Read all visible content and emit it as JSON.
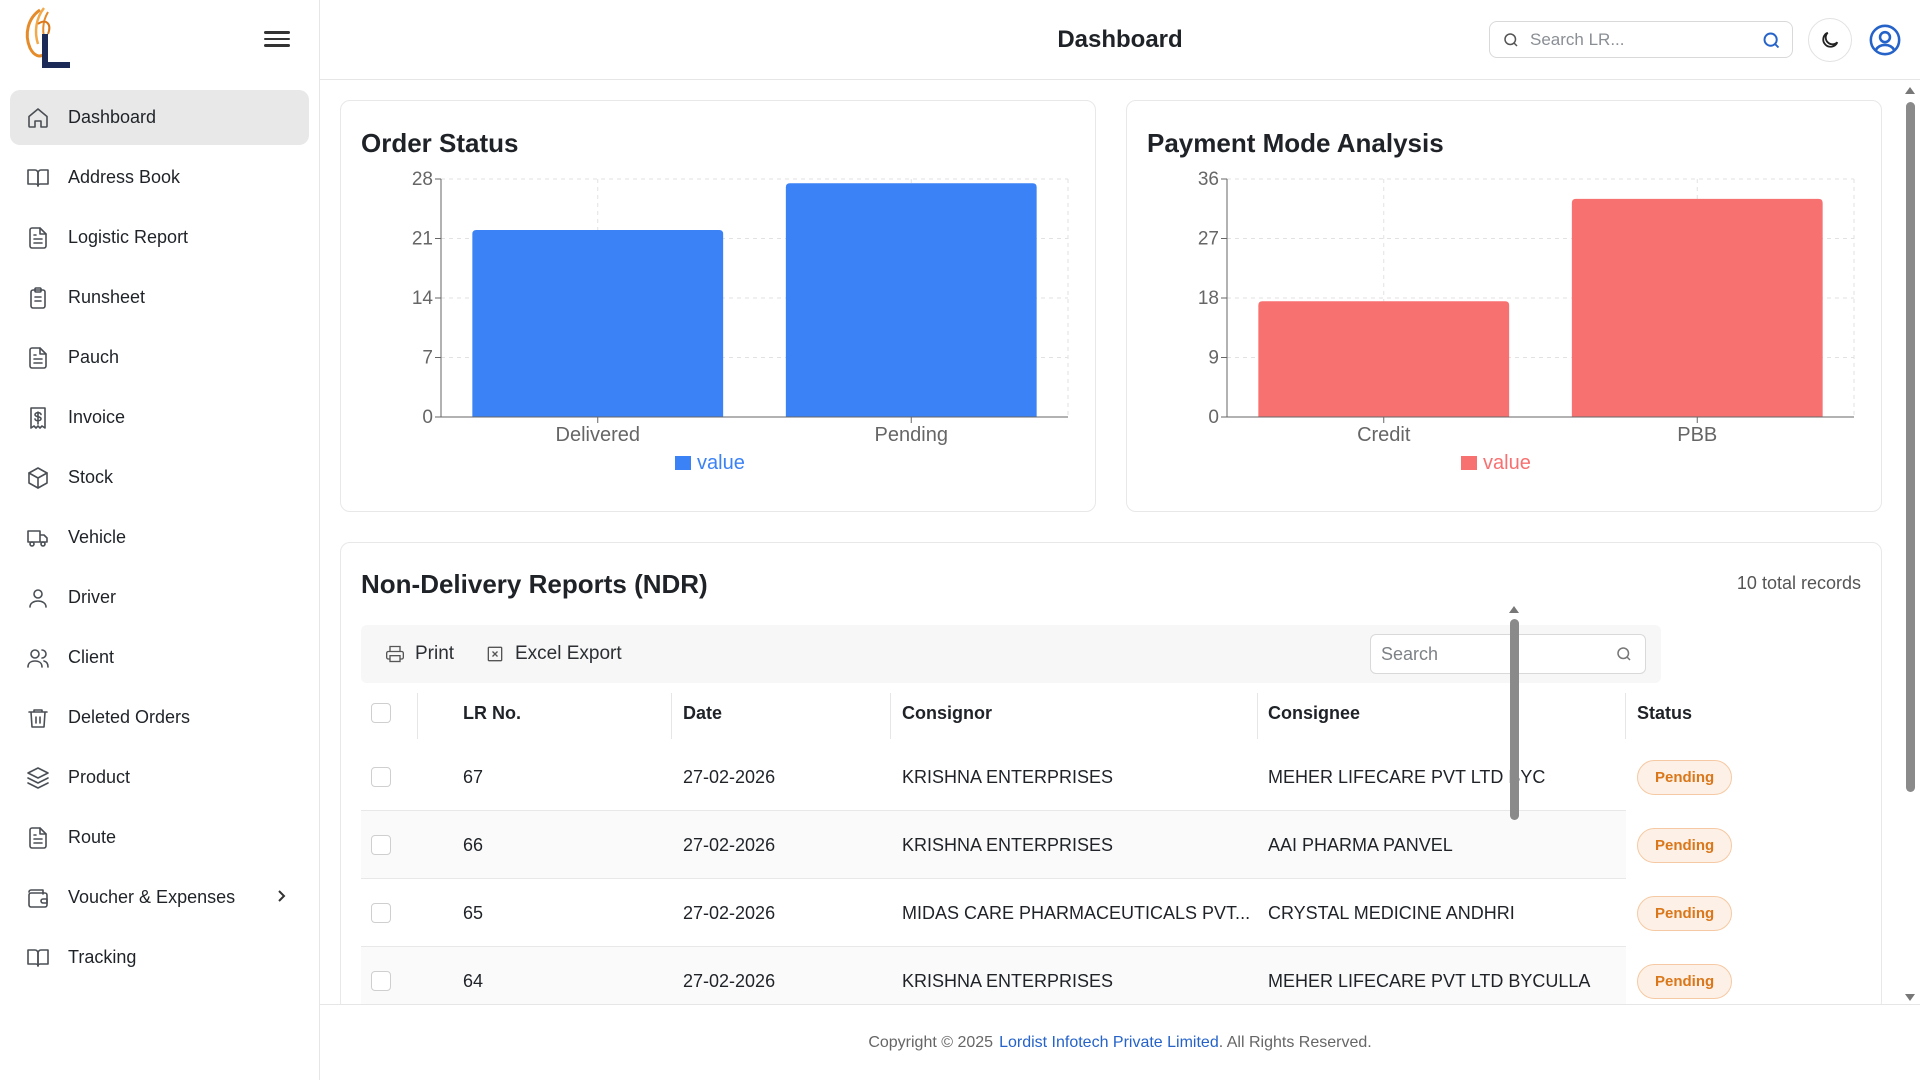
{
  "sidebar": {
    "items": [
      {
        "label": "Dashboard",
        "icon": "home-icon",
        "active": true
      },
      {
        "label": "Address Book",
        "icon": "book-open-icon"
      },
      {
        "label": "Logistic Report",
        "icon": "file-text-icon"
      },
      {
        "label": "Runsheet",
        "icon": "clipboard-list-icon"
      },
      {
        "label": "Pauch",
        "icon": "file-text-icon"
      },
      {
        "label": "Invoice",
        "icon": "receipt-dollar-icon"
      },
      {
        "label": "Stock",
        "icon": "box-icon"
      },
      {
        "label": "Vehicle",
        "icon": "truck-icon"
      },
      {
        "label": "Driver",
        "icon": "user-icon"
      },
      {
        "label": "Client",
        "icon": "users-icon"
      },
      {
        "label": "Deleted Orders",
        "icon": "trash-icon"
      },
      {
        "label": "Product",
        "icon": "layers-icon"
      },
      {
        "label": "Route",
        "icon": "file-text-icon"
      },
      {
        "label": "Voucher & Expenses",
        "icon": "wallet-icon",
        "has_submenu": true
      },
      {
        "label": "Tracking",
        "icon": "book-open-icon"
      }
    ]
  },
  "header": {
    "title": "Dashboard",
    "search_placeholder": "Search LR..."
  },
  "charts": {
    "order_status_title": "Order Status",
    "payment_mode_title": "Payment Mode Analysis"
  },
  "chart_data": [
    {
      "type": "bar",
      "title": "Order Status",
      "categories": [
        "Delivered",
        "Pending"
      ],
      "series": [
        {
          "name": "value",
          "values": [
            22,
            27.5
          ]
        }
      ],
      "yticks": [
        0,
        7,
        14,
        21,
        28
      ],
      "ylim": [
        0,
        28
      ],
      "grid": true,
      "legend": "bottom",
      "color": "#3b82f6"
    },
    {
      "type": "bar",
      "title": "Payment Mode Analysis",
      "categories": [
        "Credit",
        "PBB"
      ],
      "series": [
        {
          "name": "value",
          "values": [
            17.5,
            33
          ]
        }
      ],
      "yticks": [
        0,
        9,
        18,
        27,
        36
      ],
      "ylim": [
        0,
        36
      ],
      "grid": true,
      "legend": "bottom",
      "color": "#f87171"
    }
  ],
  "ndr": {
    "title": "Non-Delivery Reports (NDR)",
    "count_text": "10 total records",
    "print_label": "Print",
    "export_label": "Excel Export",
    "search_placeholder": "Search",
    "columns": [
      "LR No.",
      "Date",
      "Consignor",
      "Consignee",
      "Status"
    ],
    "rows": [
      {
        "lr": "67",
        "date": "27-02-2026",
        "consignor": "KRISHNA ENTERPRISES",
        "consignee": "MEHER LIFECARE PVT LTD BYC",
        "status": "Pending"
      },
      {
        "lr": "66",
        "date": "27-02-2026",
        "consignor": "KRISHNA ENTERPRISES",
        "consignee": "AAI PHARMA PANVEL",
        "status": "Pending"
      },
      {
        "lr": "65",
        "date": "27-02-2026",
        "consignor": "MIDAS CARE PHARMACEUTICALS PVT...",
        "consignee": "CRYSTAL MEDICINE ANDHRI",
        "status": "Pending"
      },
      {
        "lr": "64",
        "date": "27-02-2026",
        "consignor": "KRISHNA ENTERPRISES",
        "consignee": "MEHER LIFECARE PVT LTD BYCULLA",
        "status": "Pending"
      }
    ]
  },
  "footer": {
    "prefix": "Copyright © 2025",
    "company": "Lordist Infotech Private Limited",
    "suffix": ". All Rights Reserved."
  },
  "colors": {
    "accent": "#2563c9",
    "bar_blue": "#3b82f6",
    "bar_red": "#f87171",
    "status_pending": "#d9771a"
  }
}
